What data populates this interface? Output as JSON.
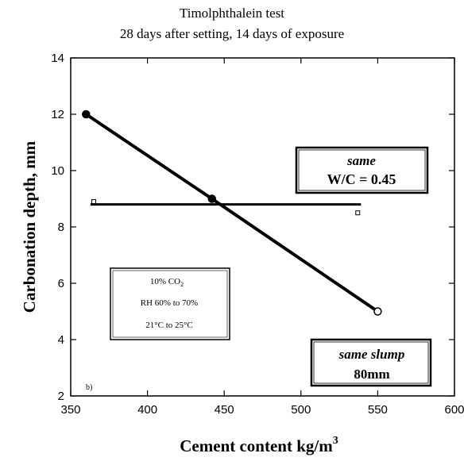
{
  "chart_data": {
    "type": "line",
    "title": "Timolphthalein test",
    "subtitle": "28 days after setting, 14 days of exposure",
    "xlabel": "Cement content kg/m",
    "xlabel_superscript": "3",
    "ylabel": "Carbonation depth, mm",
    "xlim": [
      350,
      600
    ],
    "ylim": [
      2,
      14
    ],
    "x_ticks": [
      350,
      400,
      450,
      500,
      550,
      600
    ],
    "y_ticks": [
      2,
      4,
      6,
      8,
      10,
      12,
      14
    ],
    "grid": false,
    "panel_label": "b)",
    "series": [
      {
        "marker": "circle",
        "x": [
          360,
          442,
          550
        ],
        "y": [
          12,
          9,
          5
        ]
      },
      {
        "marker": "square",
        "x": [
          365,
          537
        ],
        "y": [
          8.9,
          8.5
        ]
      }
    ],
    "annotations": {
      "same_wc_line1": "same",
      "same_wc_line2": "W/C = 0.45",
      "conditions_line1": "10% CO",
      "conditions_line1_sub": "2",
      "conditions_line2": "RH 60% to 70%",
      "conditions_line3": "21°C to 25°C",
      "same_slump_line1": "same slump",
      "same_slump_line2": "80mm"
    }
  }
}
